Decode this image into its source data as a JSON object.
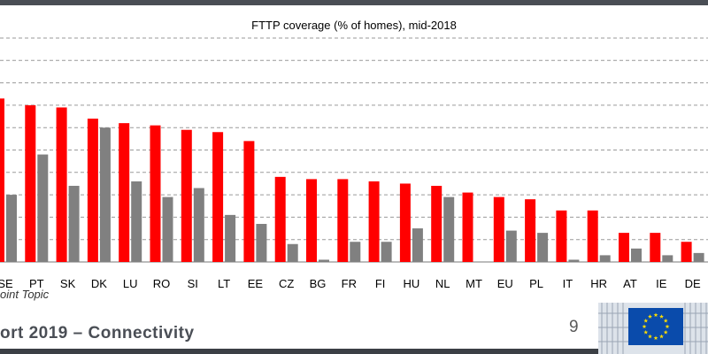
{
  "chart_data": {
    "type": "bar",
    "title": "FTTP coverage (% of homes), mid-2018",
    "categories": [
      "SE",
      "PT",
      "SK",
      "DK",
      "LU",
      "RO",
      "SI",
      "LT",
      "EE",
      "CZ",
      "BG",
      "FR",
      "FI",
      "HU",
      "NL",
      "MT",
      "EU",
      "PL",
      "IT",
      "HR",
      "AT",
      "IE",
      "DE"
    ],
    "series": [
      {
        "color": "#ff0000",
        "values": [
          73,
          70,
          69,
          64,
          62,
          61,
          59,
          58,
          54,
          38,
          37,
          37,
          36,
          35,
          34,
          31,
          29,
          28,
          23,
          23,
          13,
          13,
          9
        ]
      },
      {
        "color": "#808080",
        "values": [
          30,
          48,
          34,
          60,
          36,
          29,
          33,
          21,
          17,
          8,
          1,
          9,
          9,
          15,
          29,
          0,
          14,
          13,
          1,
          3,
          6,
          3,
          4
        ]
      }
    ],
    "ylim": [
      0,
      100
    ],
    "grid": true
  },
  "source_note": "oint Topic",
  "footer_text": "ort 2019 – Connectivity",
  "page_number": "9",
  "colors": {
    "dark_strip": "#4a4e55",
    "flag_blue": "#0a4bab",
    "flag_star": "#ffde00"
  },
  "icons": {
    "flag": "eu-flag-icon",
    "building": "building-graphic-icon"
  }
}
